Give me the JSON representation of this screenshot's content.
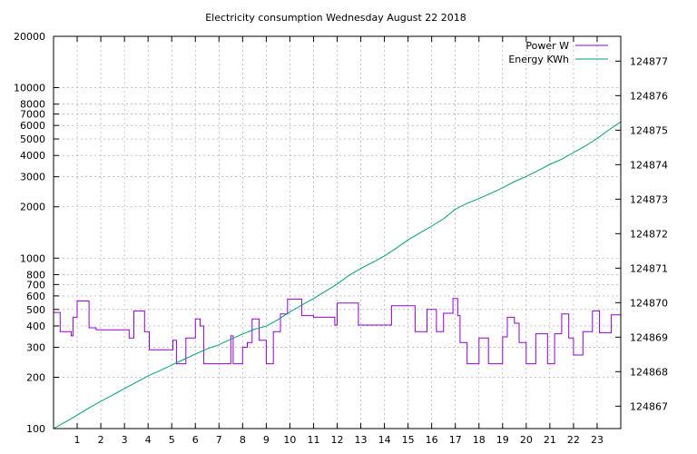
{
  "chart_data": {
    "type": "line",
    "title": "Electricity consumption Wednesday August 22 2018",
    "xlabel": "",
    "ylabel": "",
    "y2label": "",
    "xlim": [
      0,
      24
    ],
    "ylim": [
      100,
      20000
    ],
    "yscale": "log",
    "y2lim": [
      124866.35,
      124877.72
    ],
    "x_ticks": [
      1,
      2,
      3,
      4,
      5,
      6,
      7,
      8,
      9,
      10,
      11,
      12,
      13,
      14,
      15,
      16,
      17,
      18,
      19,
      20,
      21,
      22,
      23
    ],
    "y_ticks": [
      100,
      200,
      300,
      400,
      500,
      600,
      700,
      800,
      1000,
      2000,
      3000,
      4000,
      5000,
      6000,
      7000,
      8000,
      10000,
      20000
    ],
    "y_tick_labels": [
      "100",
      "200",
      "300",
      "400",
      "500",
      "600",
      "700",
      "800",
      "1000",
      "2000",
      "3000",
      "4000",
      "5000",
      "6000",
      "7000",
      "8000",
      "10000",
      "20000"
    ],
    "y2_ticks": [
      124867,
      124868,
      124869,
      124870,
      124871,
      124872,
      124873,
      124874,
      124875,
      124876,
      124877
    ],
    "grid": true,
    "legend_position": "top-right",
    "series": [
      {
        "name": "Power W",
        "axis": "y",
        "color": "#9400d3",
        "step": true,
        "x": [
          0,
          0.28,
          0.75,
          0.82,
          1.0,
          1.5,
          1.8,
          2.0,
          3.2,
          3.4,
          3.85,
          4.05,
          4.7,
          5.05,
          5.2,
          5.6,
          6.0,
          6.2,
          6.35,
          7.0,
          7.5,
          7.6,
          8.0,
          8.2,
          8.4,
          8.7,
          9.0,
          9.3,
          9.6,
          9.9,
          10.5,
          11.0,
          11.6,
          11.9,
          12.0,
          12.5,
          12.9,
          13.0,
          14.0,
          14.3,
          15.0,
          15.3,
          15.8,
          16.2,
          16.5,
          16.9,
          17.1,
          17.2,
          17.5,
          18.0,
          18.4,
          18.8,
          19.0,
          19.2,
          19.5,
          19.7,
          20.0,
          20.4,
          20.7,
          20.9,
          21.2,
          21.5,
          21.6,
          21.8,
          22.0,
          22.4,
          22.8,
          23.1,
          23.6,
          24.0
        ],
        "values": [
          480,
          370,
          350,
          450,
          560,
          390,
          380,
          380,
          340,
          490,
          370,
          290,
          290,
          330,
          240,
          340,
          440,
          400,
          240,
          240,
          350,
          240,
          300,
          320,
          440,
          330,
          240,
          370,
          470,
          575,
          460,
          450,
          450,
          405,
          545,
          545,
          405,
          405,
          405,
          525,
          525,
          370,
          500,
          370,
          475,
          580,
          460,
          320,
          240,
          340,
          240,
          240,
          345,
          450,
          415,
          320,
          240,
          360,
          360,
          240,
          360,
          470,
          470,
          340,
          270,
          370,
          490,
          365,
          465,
          560
        ]
      },
      {
        "name": "Energy KWh",
        "axis": "y2",
        "color": "#009e73",
        "x": [
          0,
          0.5,
          1,
          1.5,
          2,
          2.5,
          3,
          3.5,
          4,
          4.5,
          5,
          5.5,
          6,
          6.5,
          7,
          7.5,
          8,
          8.5,
          9,
          9.5,
          10,
          10.5,
          11,
          11.5,
          12,
          12.5,
          13,
          13.5,
          14,
          14.5,
          15,
          15.5,
          16,
          16.5,
          17,
          17.5,
          18,
          18.5,
          19,
          19.5,
          20,
          20.5,
          21,
          21.5,
          22,
          22.5,
          23,
          23.5,
          24
        ],
        "values": [
          124866.35,
          124866.54,
          124866.74,
          124866.95,
          124867.14,
          124867.32,
          124867.51,
          124867.69,
          124867.88,
          124868.03,
          124868.19,
          124868.35,
          124868.51,
          124868.66,
          124868.78,
          124868.94,
          124869.09,
          124869.23,
          124869.32,
          124869.51,
          124869.73,
          124869.93,
          124870.12,
          124870.33,
          124870.54,
          124870.79,
          124870.99,
          124871.17,
          124871.35,
          124871.58,
          124871.82,
          124872.02,
          124872.22,
          124872.43,
          124872.71,
          124872.88,
          124873.02,
          124873.17,
          124873.33,
          124873.51,
          124873.66,
          124873.83,
          124874.01,
          124874.16,
          124874.35,
          124874.54,
          124874.76,
          124875.01,
          124875.24
        ]
      }
    ]
  }
}
